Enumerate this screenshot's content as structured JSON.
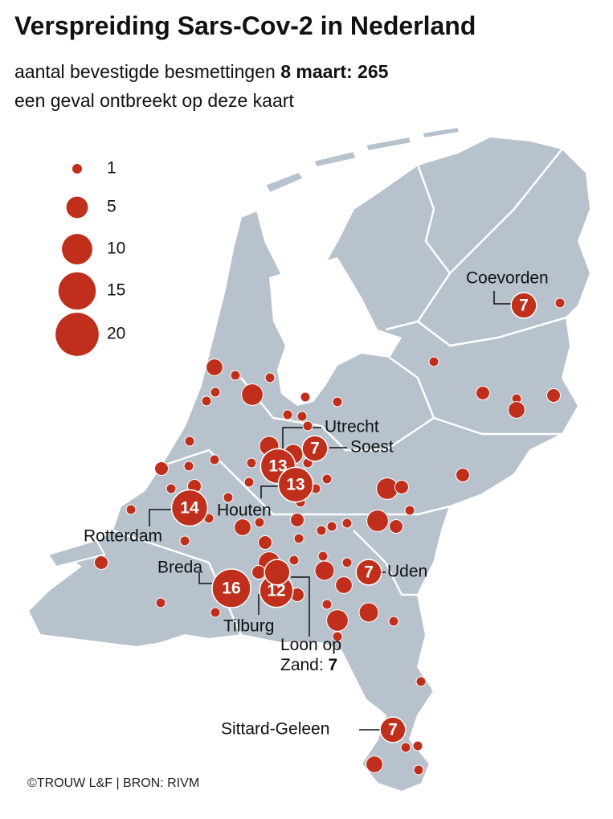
{
  "header": {
    "title": "Verspreiding Sars-Cov-2 in Nederland",
    "subtitle": "aantal bevestigde besmettingen",
    "highlight": "8 maart: 265",
    "note": "een geval ontbreekt op deze kaart"
  },
  "legend": {
    "values": [
      1,
      5,
      10,
      15,
      20
    ]
  },
  "places": [
    {
      "name": "Coevorden",
      "value": 7
    },
    {
      "name": "Utrecht",
      "value": 13
    },
    {
      "name": "Soest",
      "value": 7
    },
    {
      "name": "Houten",
      "value": 13
    },
    {
      "name": "Rotterdam",
      "value": 14
    },
    {
      "name": "Breda",
      "value": 16
    },
    {
      "name": "Tilburg",
      "value": 12
    },
    {
      "name": "Uden",
      "value": 7
    },
    {
      "name": "Sittard-Geleen",
      "value": 7
    },
    {
      "name": "Loon op Zand:",
      "value": 7
    }
  ],
  "other_bubbles": [
    3,
    1,
    1,
    5,
    1,
    1,
    1,
    1,
    1,
    1,
    1,
    4,
    4,
    1,
    1,
    1,
    2,
    1,
    1,
    1,
    1,
    1,
    2,
    1,
    1,
    1,
    1,
    1,
    5,
    2,
    2,
    1,
    5,
    2,
    1,
    2,
    3,
    1,
    2,
    1,
    1,
    1,
    1,
    2,
    5,
    1,
    1,
    4,
    1,
    2,
    3,
    2,
    1,
    1,
    1,
    5,
    4,
    1,
    1,
    2,
    1,
    3,
    2,
    1,
    1,
    1,
    1,
    1,
    3,
    1
  ],
  "footer": {
    "credit": "©TROUW L&F | BRON: RIVM"
  }
}
